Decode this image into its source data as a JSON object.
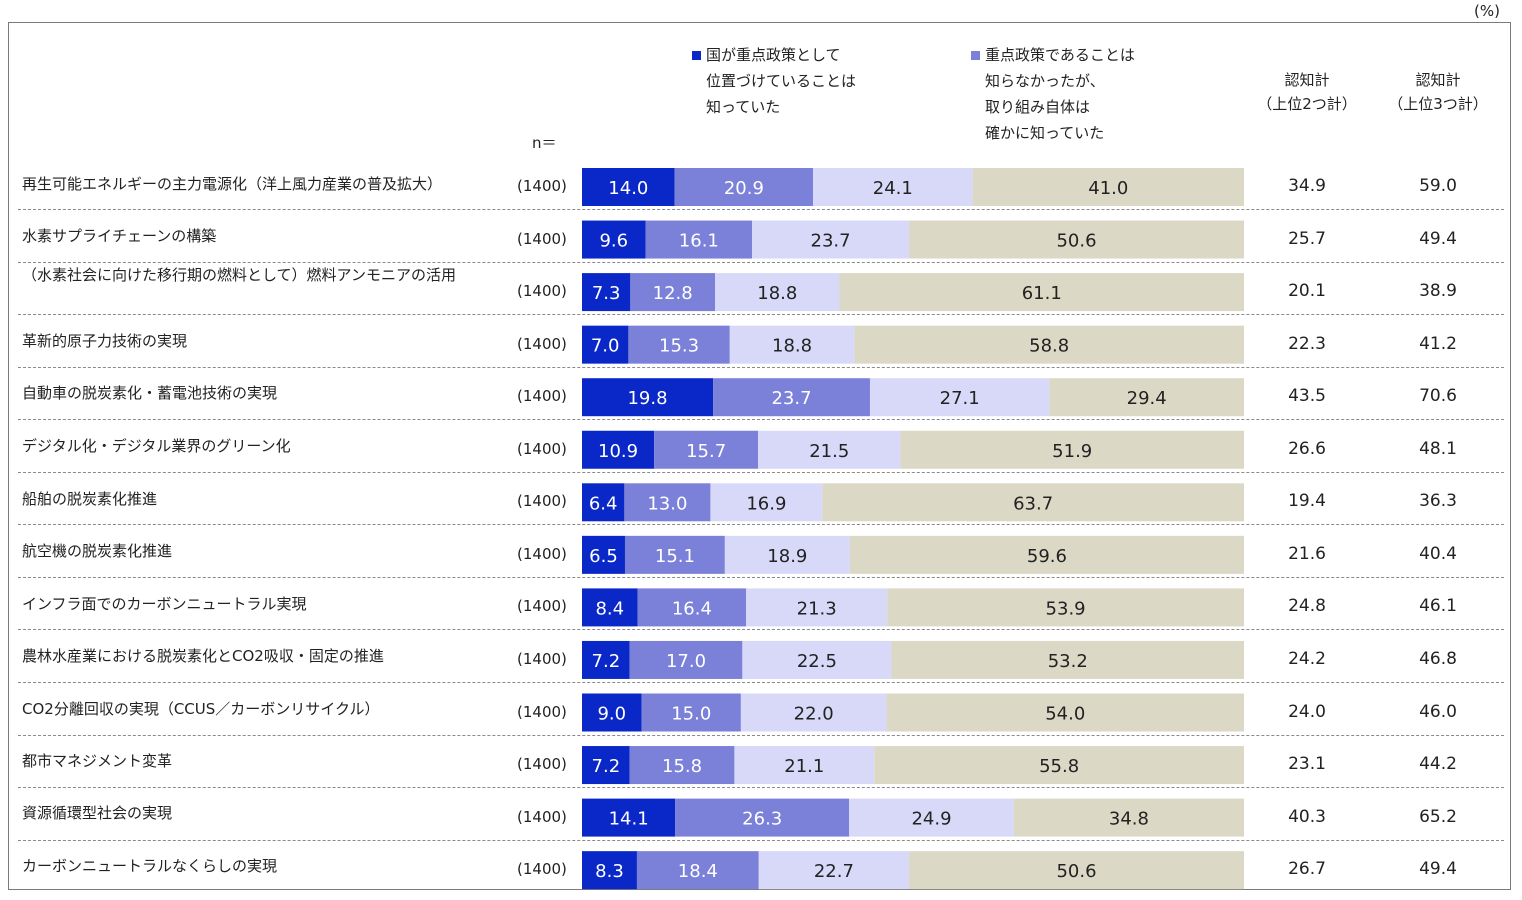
{
  "unit_label": "(%)",
  "n_header": "n＝",
  "legend": [
    {
      "lines": [
        "国が重点政策として",
        "位置づけていることは",
        "知っていた"
      ],
      "color": "#0a28c8"
    },
    {
      "lines": [
        "重点政策であることは",
        "知らなかったが、",
        "取り組み自体は",
        "確かに知っていた"
      ],
      "color": "#7b80d8"
    }
  ],
  "columns": [
    {
      "line1": "認知計",
      "line2": "（上位2つ計）"
    },
    {
      "line1": "認知計",
      "line2": "（上位3つ計）"
    }
  ],
  "segment_colors": [
    "#0a28c8",
    "#7b80d8",
    "#d8d9f8",
    "#dcd8c6"
  ],
  "segment_text_colors": [
    "#ffffff",
    "#ffffff",
    "#222222",
    "#222222"
  ],
  "chart_data": {
    "type": "bar",
    "orientation": "horizontal-stacked-100",
    "categories": [
      "再生可能エネルギーの主力電源化（洋上風力産業の普及拡大）",
      "水素サプライチェーンの構築",
      "（水素社会に向けた移行期の燃料として）燃料アンモニアの活用",
      "革新的原子力技術の実現",
      "自動車の脱炭素化・蓄電池技術の実現",
      "デジタル化・デジタル業界のグリーン化",
      "船舶の脱炭素化推進",
      "航空機の脱炭素化推進",
      "インフラ面でのカーボンニュートラル実現",
      "農林水産業における脱炭素化とCO2吸収・固定の推進",
      "CO2分離回収の実現（CCUS／カーボンリサイクル）",
      "都市マネジメント変革",
      "資源循環型社会の実現",
      "カーボンニュートラルなくらしの実現"
    ],
    "n": [
      "(1400)",
      "(1400)",
      "(1400)",
      "(1400)",
      "(1400)",
      "(1400)",
      "(1400)",
      "(1400)",
      "(1400)",
      "(1400)",
      "(1400)",
      "(1400)",
      "(1400)",
      "(1400)"
    ],
    "series": [
      {
        "name": "国が重点政策として位置づけていることは知っていた",
        "values": [
          14.0,
          9.6,
          7.3,
          7.0,
          19.8,
          10.9,
          6.4,
          6.5,
          8.4,
          7.2,
          9.0,
          7.2,
          14.1,
          8.3
        ]
      },
      {
        "name": "重点政策であることは知らなかったが、取り組み自体は確かに知っていた",
        "values": [
          20.9,
          16.1,
          12.8,
          15.3,
          23.7,
          15.7,
          13.0,
          15.1,
          16.4,
          17.0,
          15.0,
          15.8,
          26.3,
          18.4
        ]
      },
      {
        "values": [
          24.1,
          23.7,
          18.8,
          18.8,
          27.1,
          21.5,
          16.9,
          18.9,
          21.3,
          22.5,
          22.0,
          21.1,
          24.9,
          22.7
        ]
      },
      {
        "values": [
          41.0,
          50.6,
          61.1,
          58.8,
          29.4,
          51.9,
          63.7,
          59.6,
          53.9,
          53.2,
          54.0,
          55.8,
          34.8,
          50.6
        ]
      }
    ],
    "totals_top2": [
      34.9,
      25.7,
      20.1,
      22.3,
      43.5,
      26.6,
      19.4,
      21.6,
      24.8,
      24.2,
      24.0,
      23.1,
      40.3,
      26.7
    ],
    "totals_top3": [
      59.0,
      49.4,
      38.9,
      41.2,
      70.6,
      48.1,
      36.3,
      40.4,
      46.1,
      46.8,
      46.0,
      44.2,
      65.2,
      49.4
    ],
    "xlim": [
      0,
      100
    ]
  }
}
